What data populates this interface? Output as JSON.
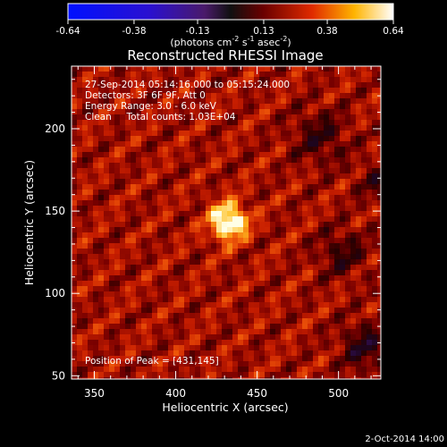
{
  "colorbar": {
    "ticks": [
      "-0.64",
      "-0.38",
      "-0.13",
      "0.13",
      "0.38",
      "0.64"
    ],
    "units_main": "(photons cm",
    "units_sup1": "-2",
    "units_mid": " s",
    "units_sup2": "-1",
    "units_end": " asec",
    "units_sup3": "-2",
    "units_close": ")",
    "range": [
      -0.64,
      0.64
    ]
  },
  "title": "Reconstructed RHESSI Image",
  "info": {
    "time": "27-Sep-2014 05:14:16.000 to 05:15:24.000",
    "detectors": "Detectors: 3F 6F 9F, Att 0",
    "energy": "Energy Range: 3.0 - 6.0 keV",
    "clean": "Clean     Total counts: 1.03E+04",
    "peak": "Position of Peak = [431,145]"
  },
  "footer_date": "2-Oct-2014 14:00",
  "chart_data": {
    "type": "heatmap",
    "title": "Reconstructed RHESSI Image",
    "xlabel": "Heliocentric X (arcsec)",
    "ylabel": "Heliocentric Y (arcsec)",
    "xlim": [
      336,
      526
    ],
    "ylim": [
      48,
      238
    ],
    "xticks": [
      350,
      400,
      450,
      500
    ],
    "yticks": [
      50,
      100,
      150,
      200
    ],
    "peak": [
      431,
      145
    ],
    "peak_value": 0.64
  }
}
